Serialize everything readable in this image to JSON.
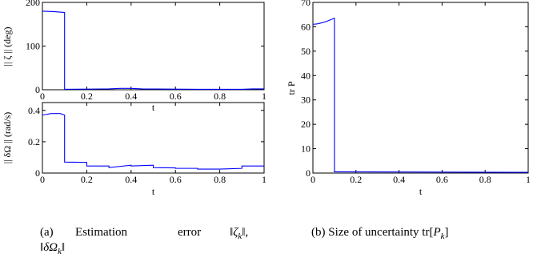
{
  "chart_data": [
    {
      "type": "line",
      "id": "zeta",
      "xlabel": "t",
      "ylabel": "|| ζ || (deg)",
      "xlim": [
        0,
        1
      ],
      "ylim": [
        0,
        200
      ],
      "xticks": [
        0,
        0.2,
        0.4,
        0.6,
        0.8,
        1
      ],
      "xtick_labels": [
        "0",
        "0.2",
        "0.4",
        "0.6",
        "0.8",
        "1"
      ],
      "yticks": [
        0,
        100,
        200
      ],
      "ytick_labels": [
        "0",
        "100",
        "200"
      ],
      "line_color": "#0000ff",
      "series": [
        {
          "x": [
            0,
            0.05,
            0.1,
            0.1,
            0.3,
            0.35,
            0.4,
            0.45,
            0.7,
            0.9,
            0.95,
            1.0
          ],
          "y": [
            180,
            179,
            177,
            1,
            2,
            3,
            3,
            2,
            1,
            1,
            2,
            2
          ]
        }
      ]
    },
    {
      "type": "line",
      "id": "omega",
      "xlabel": "t",
      "ylabel": "|| δΩ || (rad/s)",
      "xlim": [
        0,
        1
      ],
      "ylim": [
        0,
        0.45
      ],
      "xticks": [
        0,
        0.2,
        0.4,
        0.6,
        0.8,
        1
      ],
      "xtick_labels": [
        "0",
        "0.2",
        "0.4",
        "0.6",
        "0.8",
        "1"
      ],
      "yticks": [
        0,
        0.2,
        0.4
      ],
      "ytick_labels": [
        "0",
        "0.2",
        "0.4"
      ],
      "line_color": "#0000ff",
      "series": [
        {
          "x": [
            0,
            0.04,
            0.08,
            0.1,
            0.1,
            0.2,
            0.2,
            0.3,
            0.3,
            0.4,
            0.4,
            0.5,
            0.5,
            0.6,
            0.6,
            0.7,
            0.7,
            0.8,
            0.8,
            0.9,
            0.9,
            1.0
          ],
          "y": [
            0.37,
            0.38,
            0.38,
            0.37,
            0.07,
            0.068,
            0.045,
            0.045,
            0.035,
            0.05,
            0.045,
            0.05,
            0.035,
            0.033,
            0.03,
            0.03,
            0.025,
            0.025,
            0.025,
            0.03,
            0.045,
            0.045
          ]
        }
      ]
    },
    {
      "type": "line",
      "id": "trP",
      "xlabel": "t",
      "ylabel": "tr P",
      "xlim": [
        0,
        1
      ],
      "ylim": [
        0,
        70
      ],
      "xticks": [
        0,
        0.2,
        0.4,
        0.6,
        0.8,
        1
      ],
      "xtick_labels": [
        "0",
        "0.2",
        "0.4",
        "0.6",
        "0.8",
        "1"
      ],
      "yticks": [
        0,
        10,
        20,
        30,
        40,
        50,
        60,
        70
      ],
      "ytick_labels": [
        "0",
        "10",
        "20",
        "30",
        "40",
        "50",
        "60",
        "70"
      ],
      "line_color": "#0000ff",
      "series": [
        {
          "x": [
            0,
            0.02,
            0.04,
            0.06,
            0.08,
            0.1,
            0.1,
            0.11,
            1.0
          ],
          "y": [
            61,
            61.2,
            61.6,
            62.1,
            62.8,
            63.5,
            0.5,
            0.5,
            0.3
          ]
        }
      ]
    }
  ],
  "captions": {
    "a": {
      "label": "(a)",
      "words": [
        "Estimation",
        "error"
      ],
      "math_1": "‖ζ",
      "sub_1": "k",
      "math_1_end": "‖,",
      "math_2": "‖δΩ",
      "sub_2": "k",
      "math_2_end": "‖"
    },
    "b": {
      "text": "(b) Size of uncertainty tr[",
      "math": "P",
      "sub": "k",
      "end": "]"
    }
  }
}
